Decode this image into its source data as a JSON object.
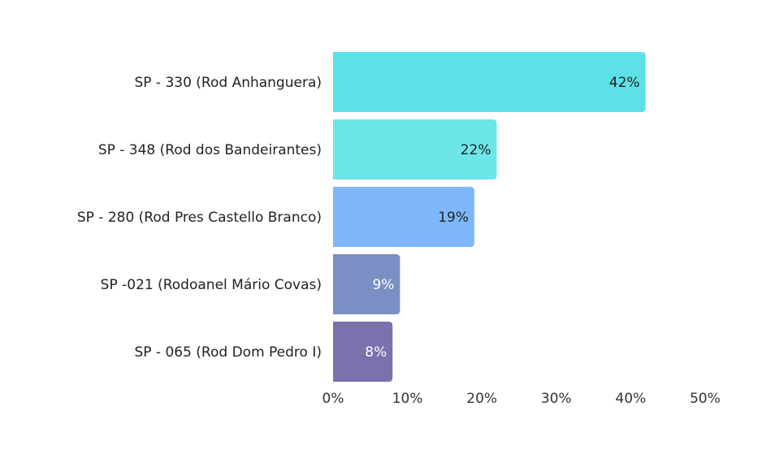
{
  "chart_data": {
    "type": "bar",
    "orientation": "horizontal",
    "categories": [
      "SP - 330 (Rod Anhanguera)",
      "SP - 348 (Rod dos Bandeirantes)",
      "SP - 280 (Rod Pres Castello Branco)",
      "SP -021 (Rodoanel Mário Covas)",
      "SP - 065 (Rod Dom Pedro I)"
    ],
    "values": [
      42,
      22,
      19,
      9,
      8
    ],
    "value_labels": [
      "42%",
      "22%",
      "19%",
      "9%",
      "8%"
    ],
    "colors": [
      "#5ce1e6",
      "#6ce6e9",
      "#7eb8fb",
      "#7b8fc4",
      "#7a71ad"
    ],
    "label_colors": [
      "#222222",
      "#222222",
      "#222222",
      "#ffffff",
      "#ffffff"
    ],
    "x_ticks": [
      0,
      10,
      20,
      30,
      40,
      50
    ],
    "x_tick_labels": [
      "0%",
      "10%",
      "20%",
      "30%",
      "40%",
      "50%"
    ],
    "xlim": [
      0,
      50
    ],
    "title": "",
    "xlabel": "",
    "ylabel": "",
    "grid": false,
    "legend": "none"
  }
}
